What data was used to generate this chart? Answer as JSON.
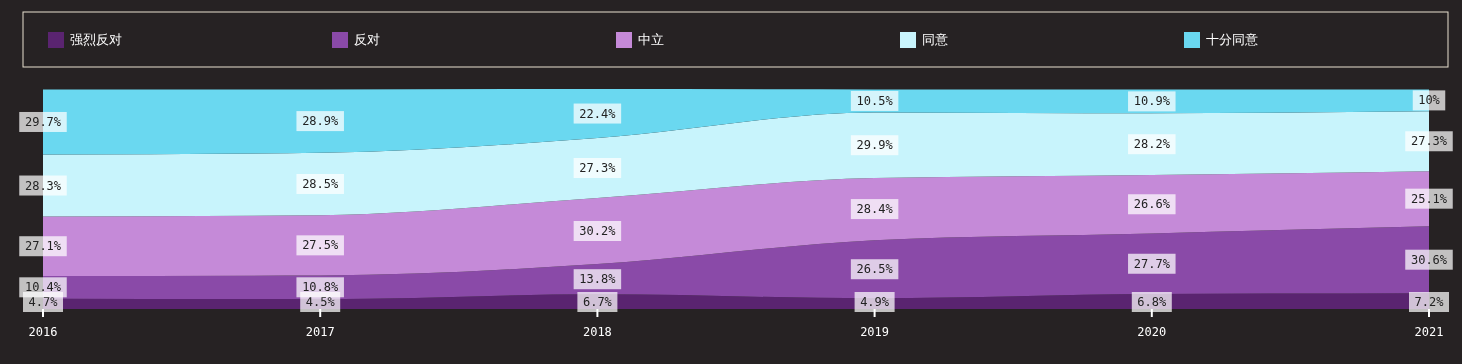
{
  "chart_data": {
    "type": "area",
    "stacked": true,
    "categories": [
      "2016",
      "2017",
      "2018",
      "2019",
      "2020",
      "2021"
    ],
    "legend": "top",
    "series": [
      {
        "name": "强烈反对",
        "color": "#5a2470",
        "values": [
          4.7,
          4.5,
          6.7,
          4.9,
          6.8,
          7.2
        ],
        "value_labels": [
          "4.7%",
          "4.5%",
          "6.7%",
          "4.9%",
          "6.8%",
          "7.2%"
        ]
      },
      {
        "name": "反对",
        "color": "#8a4aa8",
        "values": [
          10.4,
          10.8,
          13.8,
          26.5,
          27.7,
          30.6
        ],
        "value_labels": [
          "10.4%",
          "10.8%",
          "13.8%",
          "26.5%",
          "27.7%",
          "30.6%"
        ]
      },
      {
        "name": "中立",
        "color": "#c58ad8",
        "values": [
          27.1,
          27.5,
          30.2,
          28.4,
          26.6,
          25.1
        ],
        "value_labels": [
          "27.1%",
          "27.5%",
          "30.2%",
          "28.4%",
          "26.6%",
          "25.1%"
        ]
      },
      {
        "name": "同意",
        "color": "#c8f4fc",
        "values": [
          28.3,
          28.5,
          27.3,
          29.9,
          28.2,
          27.3
        ],
        "value_labels": [
          "28.3%",
          "28.5%",
          "27.3%",
          "29.9%",
          "28.2%",
          "27.3%"
        ]
      },
      {
        "name": "十分同意",
        "color": "#6ad8f0",
        "values": [
          29.7,
          28.9,
          22.4,
          10.5,
          10.9,
          10
        ],
        "value_labels": [
          "29.7%",
          "28.9%",
          "22.4%",
          "10.5%",
          "10.9%",
          "10%"
        ]
      }
    ]
  }
}
